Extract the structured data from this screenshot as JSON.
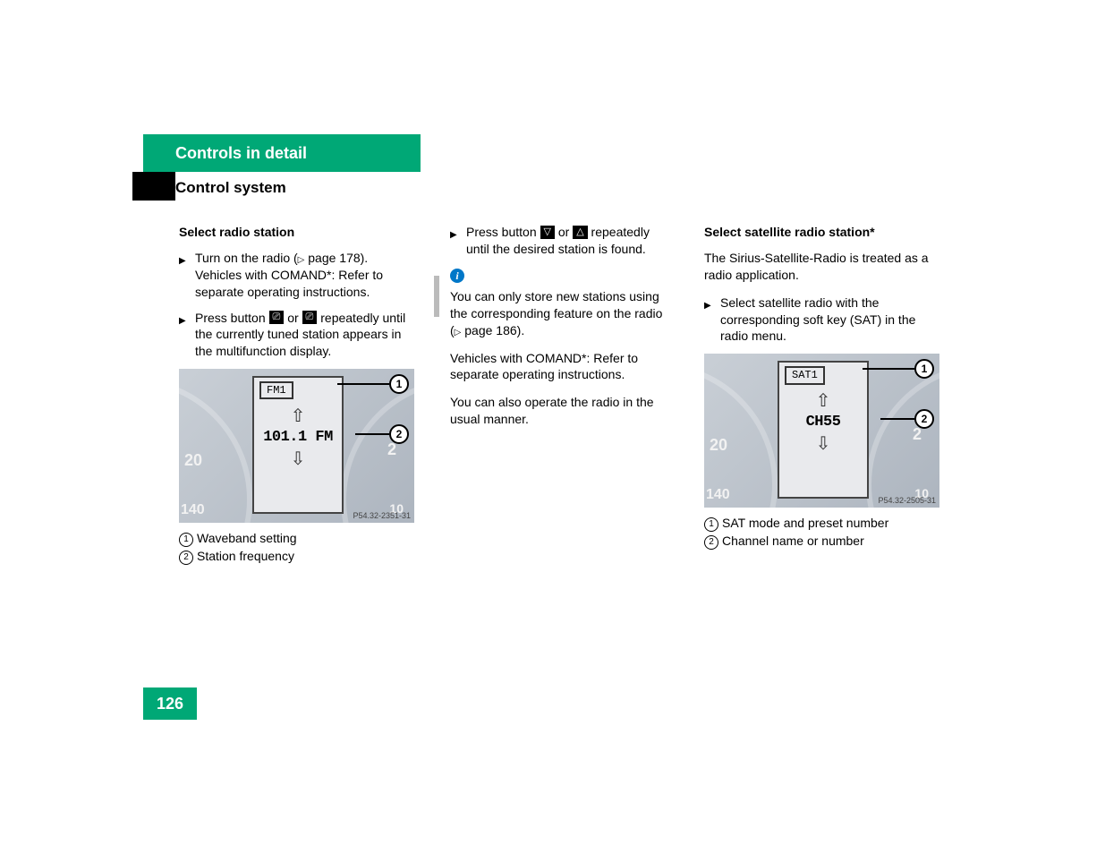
{
  "header": {
    "tab_title": "Controls in detail",
    "subheading": "Control system"
  },
  "page_number": "126",
  "col1": {
    "heading": "Select radio station",
    "item1_a": "Turn on the radio (",
    "item1_b": " page 178). Vehicles with COMAND*: Refer to separate operating instructions.",
    "item2_a": "Press button ",
    "item2_b": " or ",
    "item2_c": " repeatedly until the currently tuned station appears in the multifunction display.",
    "fig": {
      "label": "FM1",
      "freq": "101.1 FM",
      "ref": "P54.32-2351-31",
      "gauge_20": "20",
      "gauge_140": "140",
      "gauge_2_right": "2",
      "gauge_10_right": "10",
      "callout1": "1",
      "callout2": "2"
    },
    "legend1": "Waveband setting",
    "legend2": "Station frequency"
  },
  "col2": {
    "item1_a": "Press button ",
    "item1_b": " or ",
    "item1_c": " repeatedly until the desired station is found.",
    "info1_a": "You can only store new stations using the corresponding feature on the radio (",
    "info1_b": " page 186).",
    "info2": "Vehicles with COMAND*: Refer to separate operating instructions.",
    "info3": "You can also operate the radio in the usual manner."
  },
  "col3": {
    "heading": "Select satellite radio station*",
    "para1": "The Sirius-Satellite-Radio is treated as a radio application.",
    "item1": "Select satellite radio with the corresponding soft key (SAT) in the radio menu.",
    "fig": {
      "label": "SAT1",
      "freq": "CH55",
      "ref": "P54.32-2505-31",
      "gauge_20": "20",
      "gauge_140": "140",
      "gauge_2_right": "2",
      "gauge_10_right": "10",
      "callout1": "1",
      "callout2": "2"
    },
    "legend1": "SAT mode and preset number",
    "legend2": "Channel name or number"
  },
  "colors": {
    "accent": "#00a876",
    "info": "#0077c8"
  }
}
